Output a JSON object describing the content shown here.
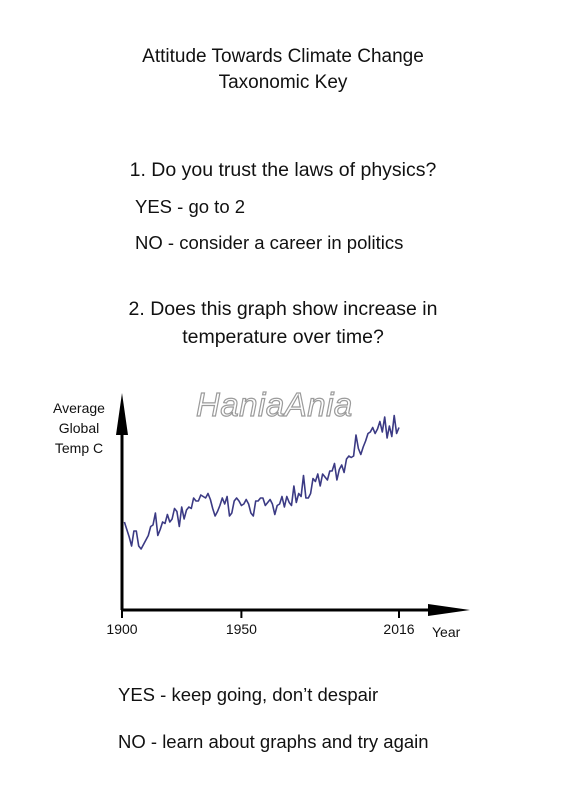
{
  "header": {
    "title_line1": "Attitude Towards Climate Change",
    "title_line2": "Taxonomic Key"
  },
  "question1": {
    "text": "1. Do you trust the laws of physics?",
    "yes": "YES - go to 2",
    "no": "NO - consider a career in politics"
  },
  "question2": {
    "line1": "2. Does this graph show increase in",
    "line2": "temperature over time?"
  },
  "watermark": "HaniaAnia",
  "chart_data": {
    "type": "line",
    "ylabel_lines": [
      "Average",
      "Global",
      "Temp C"
    ],
    "xlabel": "Year",
    "x_ticks": [
      1900,
      1950,
      2016
    ],
    "x_tick_labels": [
      "1900",
      "1950",
      "2016"
    ],
    "xlim": [
      1900,
      2032
    ],
    "ylim": [
      0,
      100
    ],
    "line_color": "#3b3a84",
    "grid": false,
    "series": [
      {
        "x": [
          1901,
          1902,
          1903,
          1904,
          1905,
          1906,
          1907,
          1908,
          1909,
          1910,
          1911,
          1912,
          1913,
          1914,
          1915,
          1916,
          1917,
          1918,
          1919,
          1920,
          1921,
          1922,
          1923,
          1924,
          1925,
          1926,
          1927,
          1928,
          1929,
          1930,
          1931,
          1932,
          1933,
          1934,
          1935,
          1936,
          1937,
          1938,
          1939,
          1940,
          1941,
          1942,
          1943,
          1944,
          1945,
          1946,
          1947,
          1948,
          1949,
          1950,
          1951,
          1952,
          1953,
          1954,
          1955,
          1956,
          1957,
          1958,
          1959,
          1960,
          1961,
          1962,
          1963,
          1964,
          1965,
          1966,
          1967,
          1968,
          1969,
          1970,
          1971,
          1972,
          1973,
          1974,
          1975,
          1976,
          1977,
          1978,
          1979,
          1980,
          1981,
          1982,
          1983,
          1984,
          1985,
          1986,
          1987,
          1988,
          1989,
          1990,
          1991,
          1992,
          1993,
          1994,
          1995,
          1996,
          1997,
          1998,
          1999,
          2000,
          2001,
          2002,
          2003,
          2004,
          2005,
          2006,
          2007,
          2008,
          2009,
          2010,
          2011,
          2012,
          2013,
          2014,
          2015,
          2016
        ],
        "values": [
          36,
          31,
          26,
          20,
          30,
          30,
          20,
          18,
          21,
          24,
          27,
          33,
          34,
          42,
          27,
          31,
          36,
          35,
          41,
          36,
          38,
          45,
          43,
          33,
          46,
          38,
          44,
          46,
          45,
          52,
          50,
          50,
          54,
          53,
          52,
          55,
          51,
          45,
          40,
          43,
          47,
          52,
          48,
          53,
          40,
          42,
          50,
          52,
          50,
          47,
          48,
          51,
          48,
          42,
          40,
          50,
          50,
          52,
          52,
          47,
          49,
          51,
          48,
          41,
          47,
          48,
          53,
          46,
          53,
          49,
          47,
          60,
          49,
          55,
          53,
          67,
          52,
          52,
          55,
          65,
          63,
          68,
          60,
          68,
          66,
          64,
          70,
          70,
          75,
          64,
          71,
          74,
          69,
          78,
          80,
          79,
          80,
          94,
          85,
          81,
          86,
          90,
          95,
          96,
          99,
          95,
          98,
          103,
          96,
          106,
          92,
          100,
          93,
          107,
          95,
          99
        ]
      }
    ]
  },
  "answers": {
    "yes": "YES - keep going, don’t despair",
    "no": "NO - learn about graphs and try again"
  }
}
